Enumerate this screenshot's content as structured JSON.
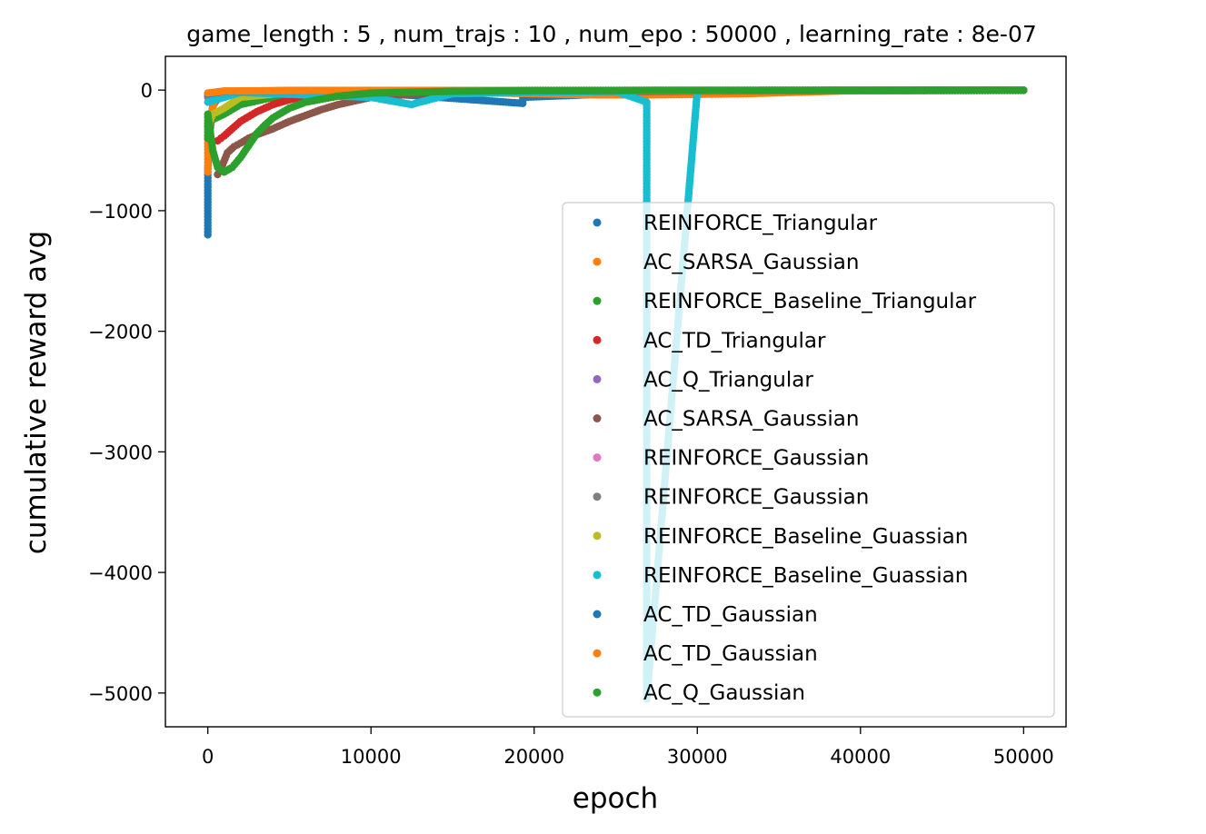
{
  "chart_data": {
    "type": "scatter",
    "title": "game_length : 5 , num_trajs : 10 , num_epo : 50000 , learning_rate : 8e-07",
    "xlabel": "epoch",
    "ylabel": "cumulative reward avg",
    "xlim": [
      -2600,
      52600
    ],
    "ylim": [
      -5280,
      280
    ],
    "xticks": [
      0,
      10000,
      20000,
      30000,
      40000,
      50000
    ],
    "xtick_labels": [
      "0",
      "10000",
      "20000",
      "30000",
      "40000",
      "50000"
    ],
    "yticks": [
      0,
      -1000,
      -2000,
      -3000,
      -4000,
      -5000
    ],
    "ytick_labels": [
      "0",
      "−1000",
      "−2000",
      "−3000",
      "−4000",
      "−5000"
    ],
    "grid": false,
    "legend_position": "lower-right",
    "series": [
      {
        "name": "REINFORCE_Triangular",
        "color": "#1f77b4",
        "points": [
          [
            0,
            -1200
          ],
          [
            0,
            -1150
          ],
          [
            0,
            -1000
          ],
          [
            0,
            -930
          ],
          [
            0,
            -780
          ],
          [
            0,
            -650
          ],
          [
            100,
            -380
          ],
          [
            300,
            -130
          ],
          [
            800,
            -30
          ],
          [
            2000,
            -10
          ],
          [
            5000,
            -5
          ],
          [
            10000,
            -20
          ],
          [
            19300,
            -110
          ],
          [
            19300,
            -60
          ],
          [
            30000,
            -3
          ],
          [
            40000,
            -2
          ],
          [
            50000,
            -2
          ]
        ]
      },
      {
        "name": "AC_SARSA_Gaussian",
        "color": "#ff7f0e",
        "points": [
          [
            0,
            -680
          ],
          [
            0,
            -600
          ],
          [
            0,
            -520
          ],
          [
            0,
            -440
          ],
          [
            0,
            -380
          ],
          [
            100,
            -310
          ],
          [
            200,
            -200
          ],
          [
            400,
            -90
          ],
          [
            800,
            -40
          ],
          [
            2000,
            -15
          ],
          [
            10000,
            -5
          ],
          [
            24000,
            -40
          ],
          [
            27000,
            -40
          ],
          [
            33000,
            -30
          ],
          [
            40000,
            -3
          ],
          [
            50000,
            -2
          ]
        ]
      },
      {
        "name": "REINFORCE_Baseline_Triangular",
        "color": "#2ca02c",
        "points": [
          [
            0,
            -400
          ],
          [
            0,
            -300
          ],
          [
            200,
            -250
          ],
          [
            1000,
            -200
          ],
          [
            2000,
            -120
          ],
          [
            4000,
            -60
          ],
          [
            8000,
            -20
          ],
          [
            15000,
            -5
          ],
          [
            30000,
            -3
          ],
          [
            50000,
            -2
          ]
        ]
      },
      {
        "name": "AC_TD_Triangular",
        "color": "#d62728",
        "points": [
          [
            600,
            -420
          ],
          [
            1000,
            -380
          ],
          [
            1500,
            -320
          ],
          [
            2000,
            -260
          ],
          [
            2500,
            -220
          ],
          [
            3000,
            -180
          ],
          [
            3500,
            -150
          ],
          [
            4000,
            -120
          ],
          [
            5000,
            -80
          ],
          [
            6000,
            -50
          ],
          [
            8000,
            -25
          ],
          [
            12000,
            -10
          ],
          [
            20000,
            -4
          ],
          [
            50000,
            -2
          ]
        ]
      },
      {
        "name": "AC_Q_Triangular",
        "color": "#9467bd",
        "points": [
          [
            0,
            -60
          ],
          [
            500,
            -20
          ],
          [
            2000,
            -8
          ],
          [
            10000,
            -4
          ],
          [
            50000,
            -2
          ]
        ]
      },
      {
        "name": "AC_SARSA_Gaussian",
        "color": "#8c564b",
        "points": [
          [
            600,
            -700
          ],
          [
            900,
            -620
          ],
          [
            1200,
            -520
          ],
          [
            1600,
            -470
          ],
          [
            2000,
            -440
          ],
          [
            2500,
            -400
          ],
          [
            3000,
            -370
          ],
          [
            4000,
            -320
          ],
          [
            5000,
            -260
          ],
          [
            6000,
            -210
          ],
          [
            7000,
            -160
          ],
          [
            8000,
            -120
          ],
          [
            9000,
            -90
          ],
          [
            10000,
            -60
          ],
          [
            12000,
            -40
          ],
          [
            15000,
            -25
          ],
          [
            20000,
            -15
          ],
          [
            30000,
            -8
          ],
          [
            40000,
            -4
          ],
          [
            50000,
            -2
          ]
        ]
      },
      {
        "name": "REINFORCE_Gaussian",
        "color": "#e377c2",
        "points": [
          [
            0,
            -40
          ],
          [
            1000,
            -10
          ],
          [
            5000,
            -4
          ],
          [
            50000,
            -2
          ]
        ]
      },
      {
        "name": "REINFORCE_Gaussian",
        "color": "#7f7f7f",
        "points": [
          [
            0,
            -50
          ],
          [
            1000,
            -12
          ],
          [
            5000,
            -5
          ],
          [
            50000,
            -2
          ]
        ]
      },
      {
        "name": "REINFORCE_Baseline_Guassian",
        "color": "#bcbd22",
        "points": [
          [
            0,
            -300
          ],
          [
            300,
            -200
          ],
          [
            1000,
            -150
          ],
          [
            2000,
            -60
          ],
          [
            5000,
            -20
          ],
          [
            10000,
            -8
          ],
          [
            50000,
            -2
          ]
        ]
      },
      {
        "name": "REINFORCE_Baseline_Guassian",
        "color": "#17becf",
        "points": [
          [
            0,
            -100
          ],
          [
            2000,
            -20
          ],
          [
            10000,
            -60
          ],
          [
            12500,
            -120
          ],
          [
            13000,
            -100
          ],
          [
            15000,
            -30
          ],
          [
            20000,
            -20
          ],
          [
            25000,
            -10
          ],
          [
            26900,
            -100
          ],
          [
            26900,
            -300
          ],
          [
            26900,
            -500
          ],
          [
            26900,
            -700
          ],
          [
            26900,
            -900
          ],
          [
            26900,
            -1000
          ],
          [
            26900,
            -1280
          ],
          [
            26900,
            -1500
          ],
          [
            26900,
            -5050
          ],
          [
            30000,
            -5
          ],
          [
            50000,
            -2
          ]
        ]
      },
      {
        "name": "AC_TD_Gaussian",
        "color": "#1f77b4",
        "points": [
          [
            0,
            -30
          ],
          [
            1000,
            -10
          ],
          [
            10000,
            -4
          ],
          [
            50000,
            -2
          ]
        ]
      },
      {
        "name": "AC_TD_Gaussian",
        "color": "#ff7f0e",
        "points": [
          [
            0,
            -25
          ],
          [
            1000,
            -8
          ],
          [
            10000,
            -3
          ],
          [
            50000,
            -2
          ]
        ]
      },
      {
        "name": "AC_Q_Gaussian",
        "color": "#2ca02c",
        "points": [
          [
            0,
            -300
          ],
          [
            0,
            -200
          ],
          [
            300,
            -500
          ],
          [
            600,
            -640
          ],
          [
            1000,
            -680
          ],
          [
            1500,
            -640
          ],
          [
            2000,
            -560
          ],
          [
            2500,
            -460
          ],
          [
            3000,
            -360
          ],
          [
            3500,
            -290
          ],
          [
            4000,
            -230
          ],
          [
            5000,
            -150
          ],
          [
            6000,
            -100
          ],
          [
            8000,
            -50
          ],
          [
            10000,
            -25
          ],
          [
            15000,
            -10
          ],
          [
            20000,
            -5
          ],
          [
            30000,
            -3
          ],
          [
            40000,
            -2
          ],
          [
            50000,
            -1
          ]
        ]
      }
    ]
  }
}
